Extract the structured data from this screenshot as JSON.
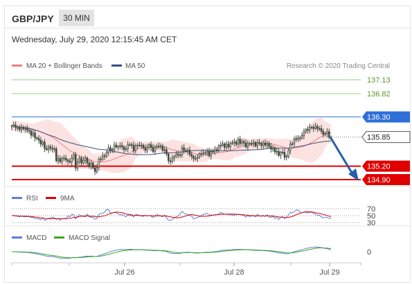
{
  "header": {
    "pair": "GBP/JPY",
    "timeframe": "30 MIN",
    "datetime": "Wednesday, July 29, 2020 12:15:45 AM CET"
  },
  "legend": {
    "ma20": "MA 20 + Bollinger Bands",
    "ma50": "MA 50",
    "credit": "Research © 2020 Trading Central",
    "rsi": "RSI",
    "rsi_ma": "9MA",
    "macd": "MACD",
    "macd_signal": "MACD Signal"
  },
  "colors": {
    "ma20": "#f08080",
    "ma50": "#34527e",
    "band": "#fde2e2",
    "candle": "#3d4a3d",
    "resistance": "#5a9a2a",
    "pivot": "#2f6fd9",
    "support": "#e00000",
    "arrow": "#2560a8",
    "rsi": "#5b7fd6",
    "macd": "#5b7fd6",
    "macd_signal": "#3aa620"
  },
  "chart_data": {
    "type": "candlestick",
    "instrument": "GBP/JPY",
    "timeframe": "30 MIN",
    "price_levels": [
      {
        "label": "137.13",
        "value": 137.13,
        "kind": "resistance"
      },
      {
        "label": "136.82",
        "value": 136.82,
        "kind": "resistance"
      },
      {
        "label": "136.30",
        "value": 136.3,
        "kind": "pivot"
      },
      {
        "label": "135.85",
        "value": 135.85,
        "kind": "last"
      },
      {
        "label": "135.20",
        "value": 135.2,
        "kind": "support"
      },
      {
        "label": "134.90",
        "value": 134.9,
        "kind": "support"
      }
    ],
    "forecast": {
      "from": 135.85,
      "to": 134.9,
      "direction": "down"
    },
    "price_close": [
      136.1,
      136.12,
      136.06,
      136.06,
      136.02,
      136.06,
      136.03,
      136.04,
      136.0,
      135.99,
      135.89,
      135.94,
      135.83,
      135.82,
      135.78,
      135.69,
      135.74,
      135.59,
      135.57,
      135.63,
      135.6,
      135.58,
      135.59,
      135.32,
      135.37,
      135.3,
      135.38,
      135.38,
      135.34,
      135.31,
      135.29,
      135.38,
      135.46,
      135.16,
      135.29,
      135.38,
      135.27,
      135.33,
      135.38,
      135.27,
      135.2,
      135.27,
      135.16,
      135.08,
      135.17,
      135.36,
      135.36,
      135.43,
      135.42,
      135.51,
      135.61,
      135.55,
      135.57,
      135.67,
      135.63,
      135.64,
      135.66,
      135.63,
      135.57,
      135.59,
      135.68,
      135.68,
      135.67,
      135.54,
      135.65,
      135.67,
      135.66,
      135.67,
      135.61,
      135.56,
      135.62,
      135.68,
      135.62,
      135.53,
      135.63,
      135.64,
      135.65,
      135.65,
      135.55,
      135.57,
      135.47,
      135.32,
      135.3,
      135.38,
      135.42,
      135.47,
      135.45,
      135.45,
      135.61,
      135.55,
      135.53,
      135.56,
      135.46,
      135.42,
      135.37,
      135.37,
      135.4,
      135.48,
      135.48,
      135.5,
      135.5,
      135.53,
      135.43,
      135.53,
      135.52,
      135.57,
      135.56,
      135.65,
      135.67,
      135.7,
      135.62,
      135.69,
      135.63,
      135.71,
      135.72,
      135.74,
      135.69,
      135.8,
      135.71,
      135.75,
      135.72,
      135.63,
      135.71,
      135.71,
      135.7,
      135.73,
      135.65,
      135.73,
      135.71,
      135.66,
      135.72,
      135.67,
      135.71,
      135.64,
      135.58,
      135.61,
      135.52,
      135.53,
      135.44,
      135.51,
      135.51,
      135.4,
      135.42,
      135.55,
      135.69,
      135.7,
      135.81,
      135.8,
      135.83,
      135.83,
      135.88,
      135.97,
      136.02,
      136.0,
      136.07,
      136.07,
      136.04,
      136.09,
      136.04,
      136.04,
      135.98,
      135.91,
      135.93,
      135.97,
      135.85,
      135.85
    ],
    "rsi": {
      "levels": [
        70,
        50,
        30
      ]
    },
    "macd": {
      "levels": [
        0
      ]
    },
    "x_ticks": [
      "Jul 26",
      "Jul 28",
      "Jul 29"
    ]
  }
}
